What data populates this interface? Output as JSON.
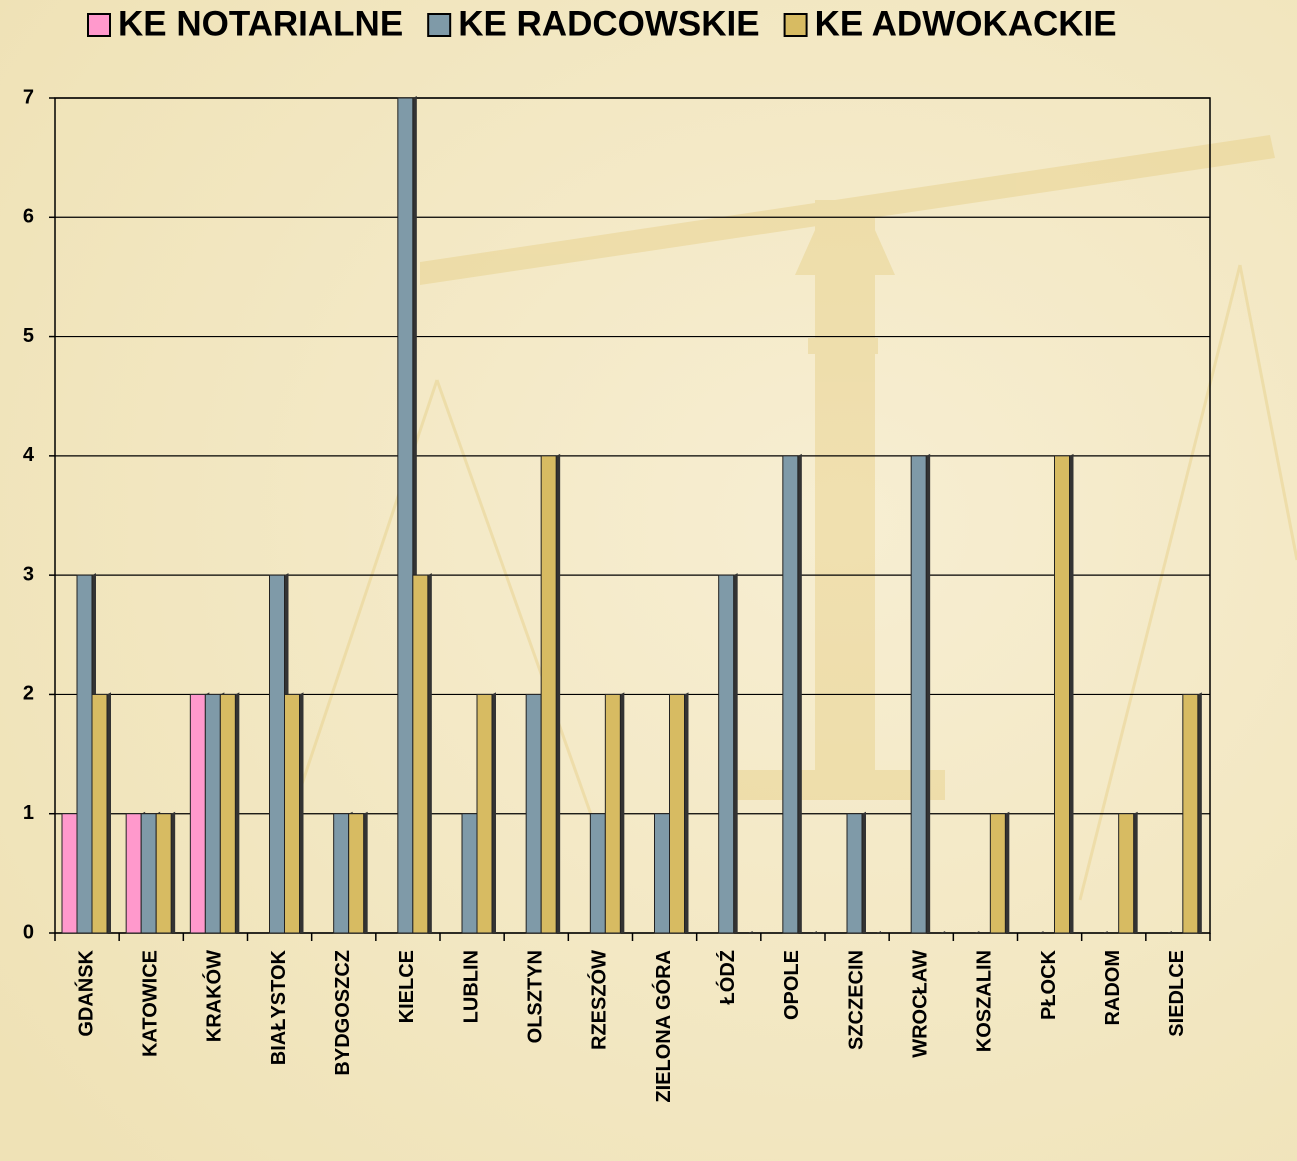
{
  "chart_data": {
    "type": "bar",
    "categories": [
      "GDAŃSK",
      "KATOWICE",
      "KRAKÓW",
      "BIAŁYSTOK",
      "BYDGOSZCZ",
      "KIELCE",
      "LUBLIN",
      "OLSZTYN",
      "RZESZÓW",
      "ZIELONA GÓRA",
      "ŁÓDŹ",
      "OPOLE",
      "SZCZECIN",
      "WROCŁAW",
      "KOSZALIN",
      "PŁOCK",
      "RADOM",
      "SIEDLCE"
    ],
    "series": [
      {
        "name": "KE NOTARIALNE",
        "color": "#ff99cc",
        "values": [
          1,
          1,
          2,
          0,
          0,
          0,
          0,
          0,
          0,
          0,
          0,
          0,
          0,
          0,
          0,
          0,
          0,
          0
        ]
      },
      {
        "name": "KE RADCOWSKIE",
        "color": "#7f9aa8",
        "values": [
          3,
          1,
          2,
          3,
          1,
          7,
          1,
          2,
          1,
          1,
          3,
          4,
          1,
          4,
          0,
          0,
          0,
          0
        ]
      },
      {
        "name": "KE ADWOKACKIE",
        "color": "#d7bb62",
        "values": [
          2,
          1,
          2,
          2,
          1,
          3,
          2,
          4,
          2,
          2,
          0,
          0,
          0,
          0,
          1,
          4,
          1,
          2
        ]
      }
    ],
    "ylim": [
      0,
      7
    ],
    "yticks": [
      0,
      1,
      2,
      3,
      4,
      5,
      6,
      7
    ],
    "grid": true,
    "legend": "top"
  }
}
